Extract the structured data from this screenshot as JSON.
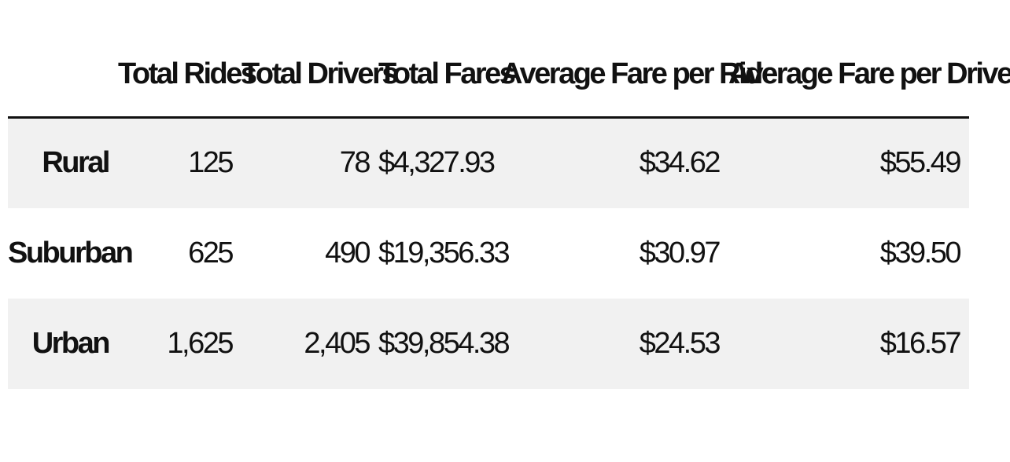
{
  "table": {
    "columns": [
      "",
      "Total Rides",
      "Total Drivers",
      "Total Fares",
      "Average Fare per Ride",
      "Average Fare per Driver"
    ],
    "rows": [
      {
        "label": "Rural",
        "cells": [
          "125",
          "78",
          "$4,327.93",
          "$34.62",
          "$55.49"
        ]
      },
      {
        "label": "Suburban",
        "cells": [
          "625",
          "490",
          "$19,356.33",
          "$30.97",
          "$39.50"
        ]
      },
      {
        "label": "Urban",
        "cells": [
          "1,625",
          "2,405",
          "$39,854.38",
          "$24.53",
          "$16.57"
        ]
      }
    ]
  },
  "colors": {
    "stripe": "#f1f1f1",
    "text": "#111111",
    "rule": "#111111"
  }
}
